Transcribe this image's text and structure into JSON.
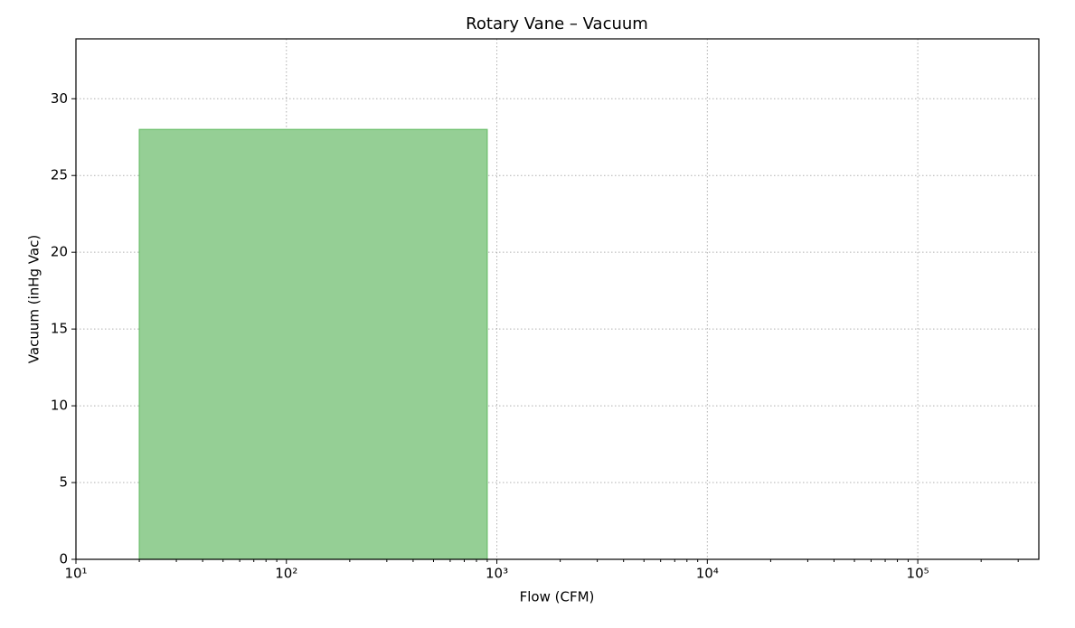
{
  "chart_data": {
    "type": "range",
    "title": "Rotary Vane – Vacuum",
    "x_label": "Flow (CFM)",
    "y_label": "Vacuum (inHg Vac)",
    "x_scale": "log",
    "regions": [
      {
        "x0": 20,
        "x1": 900,
        "y": 28
      }
    ],
    "color": "#95cf95",
    "edge_color": "#6dbf6d",
    "xlim": [
      10,
      376000
    ],
    "xticks": [
      {
        "value": 10,
        "label": "10¹"
      },
      {
        "value": 100,
        "label": "10²"
      },
      {
        "value": 1000,
        "label": "10³"
      },
      {
        "value": 10000,
        "label": "10⁴"
      },
      {
        "value": 100000,
        "label": "10⁵"
      }
    ],
    "xminorticks": [
      20,
      30,
      40,
      50,
      60,
      70,
      80,
      90,
      200,
      300,
      400,
      500,
      600,
      700,
      800,
      900,
      2000,
      3000,
      4000,
      5000,
      6000,
      7000,
      8000,
      9000,
      20000,
      30000,
      40000,
      50000,
      60000,
      70000,
      80000,
      90000,
      200000,
      300000
    ],
    "ylim": [
      0,
      33.9
    ],
    "yticks": [
      0,
      5,
      10,
      15,
      20,
      25,
      30
    ],
    "grid": true
  }
}
